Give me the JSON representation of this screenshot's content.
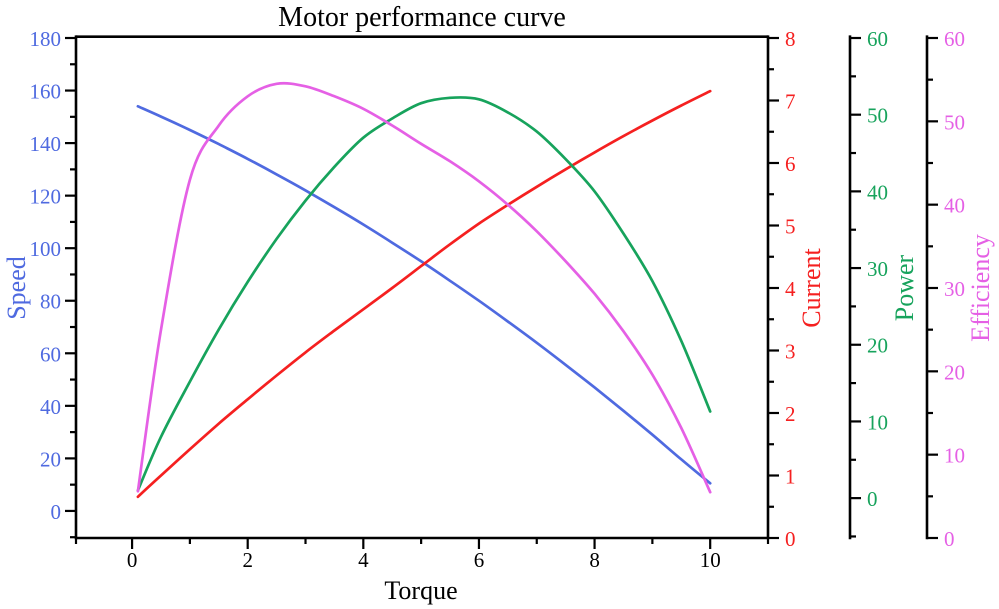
{
  "chart_data": {
    "type": "line",
    "title": "Motor performance curve",
    "xlabel": "Torque",
    "background": "#ffffff",
    "grid": "off",
    "legend": "none",
    "x": [
      0.1,
      0.5,
      1,
      1.5,
      2,
      2.5,
      3,
      3.5,
      4,
      4.5,
      5,
      5.5,
      6,
      6.5,
      7,
      7.5,
      8,
      8.5,
      9,
      9.5,
      10
    ],
    "series": [
      {
        "name": "Speed",
        "axis": "speed",
        "color": "#4f6ae0",
        "values": [
          154,
          150.1,
          145,
          139.6,
          134,
          128.1,
          122,
          115.6,
          109,
          102.1,
          95,
          87.6,
          80,
          72.1,
          64,
          55.6,
          47,
          38.1,
          29,
          19.6,
          10.5
        ]
      },
      {
        "name": "Current",
        "axis": "current",
        "color": "#f52020",
        "values": [
          0.66,
          1.0,
          1.42,
          1.83,
          2.22,
          2.6,
          2.97,
          3.32,
          3.66,
          4.0,
          4.35,
          4.7,
          5.03,
          5.33,
          5.62,
          5.9,
          6.17,
          6.43,
          6.68,
          6.92,
          7.15
        ]
      },
      {
        "name": "Power",
        "axis": "power",
        "color": "#17a35c",
        "values": [
          1.0,
          8,
          15.2,
          22,
          28.2,
          33.8,
          38.8,
          43.2,
          47,
          49.5,
          51.5,
          52.2,
          52,
          50.3,
          47.8,
          44.2,
          40,
          34.5,
          28.3,
          20.5,
          11.3
        ]
      },
      {
        "name": "Efficiency",
        "axis": "efficiency",
        "color": "#e560e5",
        "values": [
          5.6,
          25,
          43,
          49.5,
          53,
          54.5,
          54.2,
          53,
          51.5,
          49.5,
          47.3,
          45.2,
          42.8,
          40,
          36.8,
          33.2,
          29.3,
          24.8,
          19.6,
          13.2,
          5.5
        ]
      }
    ],
    "axes": {
      "x": {
        "label": "Torque",
        "color": "#000000",
        "min": -0.97,
        "max": 11.0,
        "major_ticks": [
          0,
          2,
          4,
          6,
          8,
          10
        ],
        "minor_ticks": [
          -1,
          1,
          3,
          5,
          7,
          9,
          11
        ]
      },
      "speed": {
        "label": "Speed",
        "color": "#4f6ae0",
        "min": -10.3,
        "max": 180,
        "major_ticks": [
          0,
          20,
          40,
          60,
          80,
          100,
          120,
          140,
          160,
          180
        ],
        "minor_ticks": [
          -10,
          10,
          30,
          50,
          70,
          90,
          110,
          130,
          150,
          170
        ]
      },
      "current": {
        "label": "Current",
        "color": "#f52020",
        "min": 0,
        "max": 8,
        "major_ticks": [
          0,
          1,
          2,
          3,
          4,
          5,
          6,
          7,
          8
        ],
        "minor_ticks": [
          0.5,
          1.5,
          2.5,
          3.5,
          4.5,
          5.5,
          6.5,
          7.5
        ]
      },
      "power": {
        "label": "Power",
        "color": "#17a35c",
        "min": -5.2,
        "max": 60,
        "major_ticks": [
          0,
          10,
          20,
          30,
          40,
          50,
          60
        ],
        "minor_ticks": [
          -5,
          5,
          15,
          25,
          35,
          45,
          55
        ]
      },
      "efficiency": {
        "label": "Efficiency",
        "color": "#e560e5",
        "min": 0,
        "max": 60,
        "major_ticks": [
          0,
          10,
          20,
          30,
          40,
          50,
          60
        ],
        "minor_ticks": [
          5,
          15,
          25,
          35,
          45,
          55
        ]
      }
    }
  }
}
